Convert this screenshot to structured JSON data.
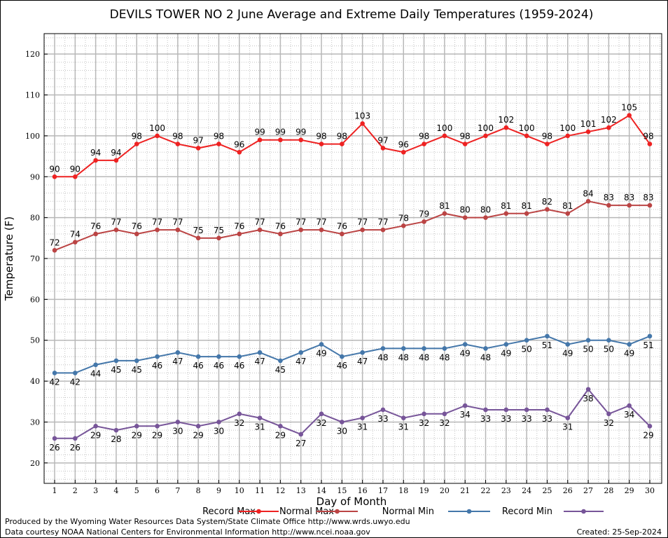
{
  "chart_data": {
    "type": "line",
    "title": "DEVILS TOWER NO 2 June Average and Extreme Daily Temperatures (1959-2024)",
    "xlabel": "Day of Month",
    "ylabel": "Temperature (F)",
    "ylim": [
      15,
      125
    ],
    "yticks": [
      20,
      30,
      40,
      50,
      60,
      70,
      80,
      90,
      100,
      110,
      120
    ],
    "x": [
      1,
      2,
      3,
      4,
      5,
      6,
      7,
      8,
      9,
      10,
      11,
      12,
      13,
      14,
      15,
      16,
      17,
      18,
      19,
      20,
      21,
      22,
      23,
      24,
      25,
      26,
      27,
      28,
      29,
      30
    ],
    "grid": true,
    "legend_position": "bottom",
    "series": [
      {
        "name": "Record Max",
        "color": "#ee2222",
        "label_pos": "above",
        "values": [
          90,
          90,
          94,
          94,
          98,
          100,
          98,
          97,
          98,
          96,
          99,
          99,
          99,
          98,
          98,
          103,
          97,
          96,
          98,
          100,
          98,
          100,
          102,
          100,
          98,
          100,
          101,
          102,
          105,
          98
        ]
      },
      {
        "name": "Normal Max",
        "color": "#bb4444",
        "label_pos": "above",
        "values": [
          72,
          74,
          76,
          77,
          76,
          77,
          77,
          75,
          75,
          76,
          77,
          76,
          77,
          77,
          76,
          77,
          77,
          78,
          79,
          81,
          80,
          80,
          81,
          81,
          82,
          81,
          84,
          83,
          83,
          83
        ]
      },
      {
        "name": "Normal Min",
        "color": "#4477aa",
        "label_pos": "below",
        "values": [
          42,
          42,
          44,
          45,
          45,
          46,
          47,
          46,
          46,
          46,
          47,
          45,
          47,
          49,
          46,
          47,
          48,
          48,
          48,
          48,
          49,
          48,
          49,
          50,
          51,
          49,
          50,
          50,
          49,
          51
        ]
      },
      {
        "name": "Record Min",
        "color": "#775599",
        "label_pos": "below",
        "values": [
          26,
          26,
          29,
          28,
          29,
          29,
          30,
          29,
          30,
          32,
          31,
          29,
          27,
          32,
          30,
          31,
          33,
          31,
          32,
          32,
          34,
          33,
          33,
          33,
          33,
          31,
          38,
          32,
          34,
          29
        ]
      }
    ]
  },
  "footer": {
    "credit_1": "Produced by the Wyoming Water Resources Data System/State Climate Office http://www.wrds.uwyo.edu",
    "credit_2": "Data courtesy NOAA National Centers for Environmental Information http://www.ncei.noaa.gov",
    "created": "Created: 25-Sep-2024"
  }
}
